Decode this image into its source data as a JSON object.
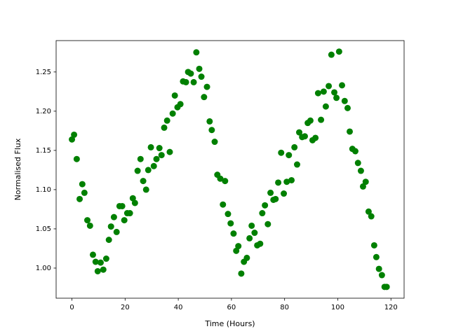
{
  "chart_data": {
    "type": "scatter",
    "x_label": "Time (Hours)",
    "y_label": "Normalised Flux",
    "color": "#008000",
    "grid": false,
    "xlim": [
      -5.95,
      124.95
    ],
    "ylim": [
      0.9616,
      1.29
    ],
    "xticks": [
      0,
      20,
      40,
      60,
      80,
      100,
      120
    ],
    "yticks": [
      {
        "value": 1.0,
        "label": "1.00"
      },
      1.05,
      {
        "value": 1.1,
        "label": "1.10"
      },
      1.15,
      {
        "value": 1.2,
        "label": "1.20"
      },
      1.25
    ],
    "x": [
      0,
      0.8,
      1.8,
      2.9,
      3.9,
      4.7,
      5.8,
      6.8,
      7.9,
      8.9,
      9.7,
      10.8,
      11.8,
      12.9,
      13.9,
      14.7,
      15.8,
      16.8,
      17.9,
      18.9,
      19.7,
      20.8,
      21.8,
      22.9,
      23.7,
      24.7,
      25.8,
      26.8,
      27.9,
      28.7,
      29.7,
      30.8,
      31.8,
      32.9,
      33.7,
      34.7,
      35.8,
      36.8,
      37.9,
      38.7,
      39.7,
      40.8,
      41.8,
      42.9,
      43.7,
      44.7,
      45.8,
      46.8,
      47.9,
      48.7,
      49.7,
      50.8,
      51.8,
      52.6,
      53.7,
      54.7,
      55.8,
      56.8,
      57.6,
      58.7,
      59.7,
      60.8,
      61.8,
      62.6,
      63.7,
      64.7,
      65.8,
      66.8,
      67.6,
      68.7,
      69.7,
      70.8,
      71.6,
      72.6,
      73.7,
      74.7,
      75.8,
      76.6,
      77.6,
      78.7,
      79.7,
      80.8,
      81.6,
      82.6,
      83.7,
      84.7,
      85.5,
      86.6,
      87.6,
      88.7,
      89.7,
      90.5,
      91.6,
      92.6,
      93.7,
      94.7,
      95.5,
      96.6,
      97.6,
      98.7,
      99.5,
      100.5,
      101.6,
      102.6,
      103.7,
      104.5,
      105.5,
      106.6,
      107.6,
      108.7,
      109.5,
      110.5,
      111.6,
      112.6,
      113.7,
      114.5,
      115.5,
      116.6,
      117.6,
      118.4
    ],
    "values": [
      1.164,
      1.17,
      1.139,
      1.088,
      1.107,
      1.096,
      1.061,
      1.054,
      1.017,
      1.008,
      0.996,
      1.007,
      0.998,
      1.012,
      1.036,
      1.053,
      1.065,
      1.046,
      1.079,
      1.079,
      1.061,
      1.07,
      1.07,
      1.089,
      1.083,
      1.124,
      1.139,
      1.111,
      1.1,
      1.125,
      1.154,
      1.13,
      1.139,
      1.153,
      1.144,
      1.179,
      1.188,
      1.148,
      1.197,
      1.22,
      1.205,
      1.209,
      1.238,
      1.237,
      1.25,
      1.248,
      1.237,
      1.275,
      1.254,
      1.244,
      1.218,
      1.231,
      1.187,
      1.176,
      1.161,
      1.119,
      1.114,
      1.081,
      1.111,
      1.069,
      1.057,
      1.044,
      1.022,
      1.028,
      0.993,
      1.008,
      1.013,
      1.038,
      1.054,
      1.045,
      1.029,
      1.031,
      1.07,
      1.08,
      1.056,
      1.096,
      1.087,
      1.088,
      1.109,
      1.147,
      1.095,
      1.11,
      1.144,
      1.112,
      1.154,
      1.132,
      1.173,
      1.167,
      1.168,
      1.185,
      1.188,
      1.163,
      1.166,
      1.223,
      1.189,
      1.225,
      1.206,
      1.232,
      1.272,
      1.224,
      1.217,
      1.276,
      1.233,
      1.213,
      1.204,
      1.174,
      1.152,
      1.149,
      1.134,
      1.124,
      1.104,
      1.11,
      1.072,
      1.066,
      1.029,
      1.014,
      0.999,
      0.991,
      0.976,
      0.976
    ]
  }
}
